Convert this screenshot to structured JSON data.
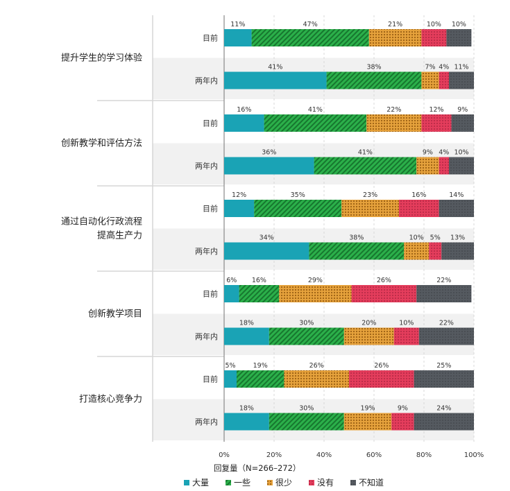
{
  "chart_data": {
    "type": "bar",
    "orientation": "horizontal",
    "stacked": true,
    "percent_scale": true,
    "xlabel": "回复量（N=266–272）",
    "xlim": [
      0,
      100
    ],
    "x_ticks": [
      "0%",
      "20%",
      "40%",
      "60%",
      "80%",
      "100%"
    ],
    "legend_position": "bottom",
    "series_names": [
      "大量",
      "一些",
      "很少",
      "没有",
      "不知道"
    ],
    "series_colors": [
      "#1aa3b5",
      "#2bb04a",
      "#e6a23c",
      "#e43d5c",
      "#555a60"
    ],
    "groups": [
      {
        "category": "提升学生的学习体验",
        "rows": [
          {
            "period": "目前",
            "values": [
              11,
              47,
              21,
              10,
              10
            ]
          },
          {
            "period": "两年内",
            "values": [
              41,
              38,
              7,
              4,
              11
            ]
          }
        ]
      },
      {
        "category": "创新教学和评估方法",
        "rows": [
          {
            "period": "目前",
            "values": [
              16,
              41,
              22,
              12,
              9
            ]
          },
          {
            "period": "两年内",
            "values": [
              36,
              41,
              9,
              4,
              10
            ]
          }
        ]
      },
      {
        "category": "通过自动化行政流程\n提高生产力",
        "rows": [
          {
            "period": "目前",
            "values": [
              12,
              35,
              23,
              16,
              14
            ]
          },
          {
            "period": "两年内",
            "values": [
              34,
              38,
              10,
              5,
              13
            ]
          }
        ]
      },
      {
        "category": "创新教学项目",
        "rows": [
          {
            "period": "目前",
            "values": [
              6,
              16,
              29,
              26,
              22
            ]
          },
          {
            "period": "两年内",
            "values": [
              18,
              30,
              20,
              10,
              22
            ]
          }
        ]
      },
      {
        "category": "打造核心竞争力",
        "rows": [
          {
            "period": "目前",
            "values": [
              5,
              19,
              26,
              26,
              25
            ]
          },
          {
            "period": "两年内",
            "values": [
              18,
              30,
              19,
              9,
              24
            ]
          }
        ]
      }
    ]
  }
}
